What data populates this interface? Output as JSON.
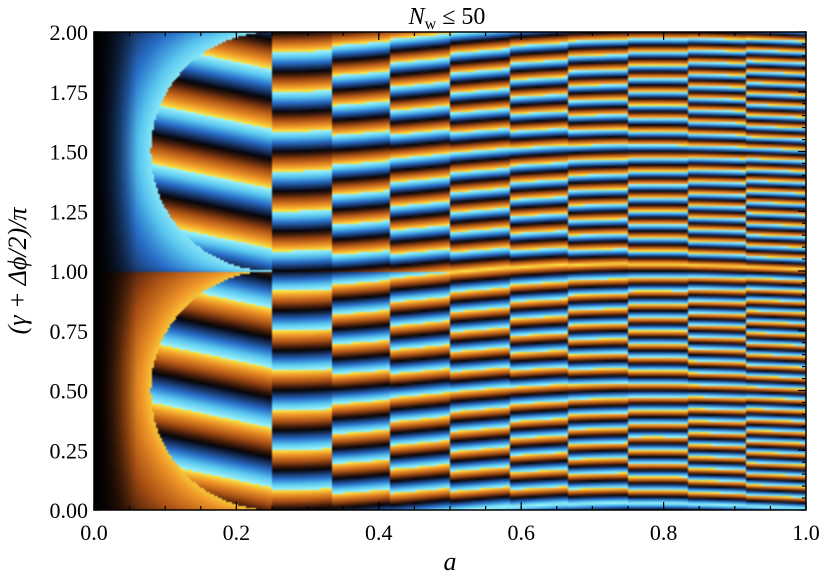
{
  "chart_data": {
    "type": "heatmap",
    "title": "N_w ≤ 50",
    "title_main": "N",
    "title_sub": "w",
    "title_rest": " ≤ 50",
    "xlabel": "a",
    "ylabel": "(γ + Δϕ/2)/π",
    "xlim": [
      0.0,
      1.0
    ],
    "ylim": [
      0.0,
      2.0
    ],
    "x_ticks": [
      0.0,
      0.2,
      0.4,
      0.6,
      0.8,
      1.0
    ],
    "x_tick_labels": [
      "0.0",
      "0.2",
      "0.4",
      "0.6",
      "0.8",
      "1.0"
    ],
    "y_ticks": [
      0.0,
      0.25,
      0.5,
      0.75,
      1.0,
      1.25,
      1.5,
      1.75,
      2.0
    ],
    "y_tick_labels": [
      "0.00",
      "0.25",
      "0.50",
      "0.75",
      "1.00",
      "1.25",
      "1.50",
      "1.75",
      "2.00"
    ],
    "colormap": "cyclic blue-black-orange (icefire-like)",
    "grid": false,
    "legend": "none"
  }
}
